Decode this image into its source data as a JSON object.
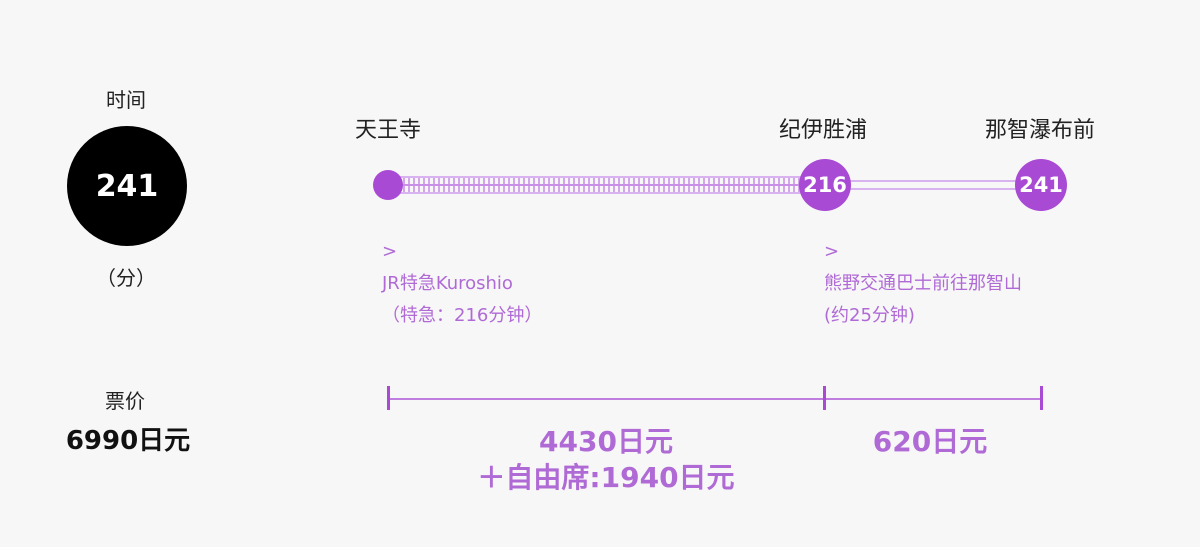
{
  "time": {
    "label": "时间",
    "value": "241",
    "unit": "（分）"
  },
  "stations": [
    {
      "name": "天王寺",
      "minutes": ""
    },
    {
      "name": "纪伊胜浦",
      "minutes": "216"
    },
    {
      "name": "那智瀑布前",
      "minutes": "241"
    }
  ],
  "segments": [
    {
      "marker": ">",
      "line": "JR特急Kuroshio",
      "detail": "（特急：216分钟）"
    },
    {
      "marker": ">",
      "line": "熊野交通巴士前往那智山",
      "detail": "(约25分钟)"
    }
  ],
  "fare": {
    "label": "票价",
    "total": "6990日元",
    "segments": [
      {
        "price": "4430日元",
        "extra": "＋自由席:1940日元"
      },
      {
        "price": "620日元",
        "extra": ""
      }
    ]
  },
  "colors": {
    "accent": "#a94ad4",
    "accent_light": "#d8b3ef",
    "text": "#222222",
    "dark": "#000000"
  }
}
